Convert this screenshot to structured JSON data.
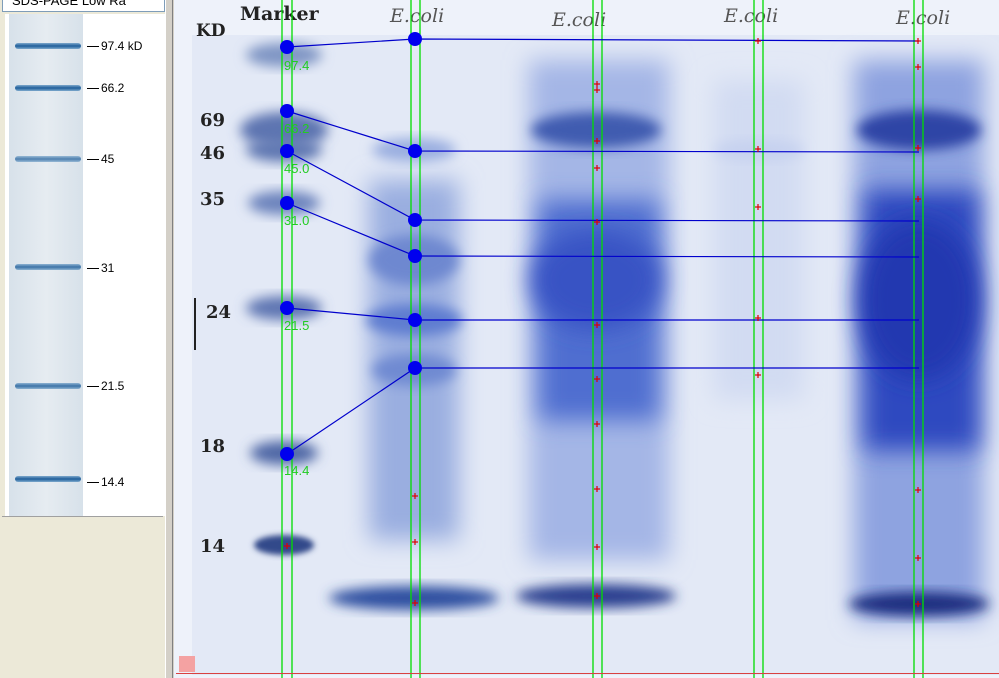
{
  "reference_panel": {
    "selector_value": "SDS-PAGE Low Ra",
    "labels": [
      "97.4 kD",
      "66.2",
      "45",
      "31",
      "21.5",
      "14.4"
    ]
  },
  "gel": {
    "kd_header": "KD",
    "lane_headers": [
      "Marker",
      "E.coli",
      "E.coli",
      "E.coli",
      "E.coli"
    ],
    "printed_sizes": [
      "69",
      "46",
      "35",
      "24",
      "18",
      "14"
    ],
    "marker_labels": [
      "97.4",
      "66.2",
      "45.0",
      "31.0",
      "21.5",
      "14.4"
    ]
  },
  "colors": {
    "lane_line": "#00dd00",
    "band_dot": "#0000ee",
    "band_line": "#0000cc",
    "cross": "#dd0000",
    "marker_label": "#22cc22",
    "frame": "#d94040"
  }
}
